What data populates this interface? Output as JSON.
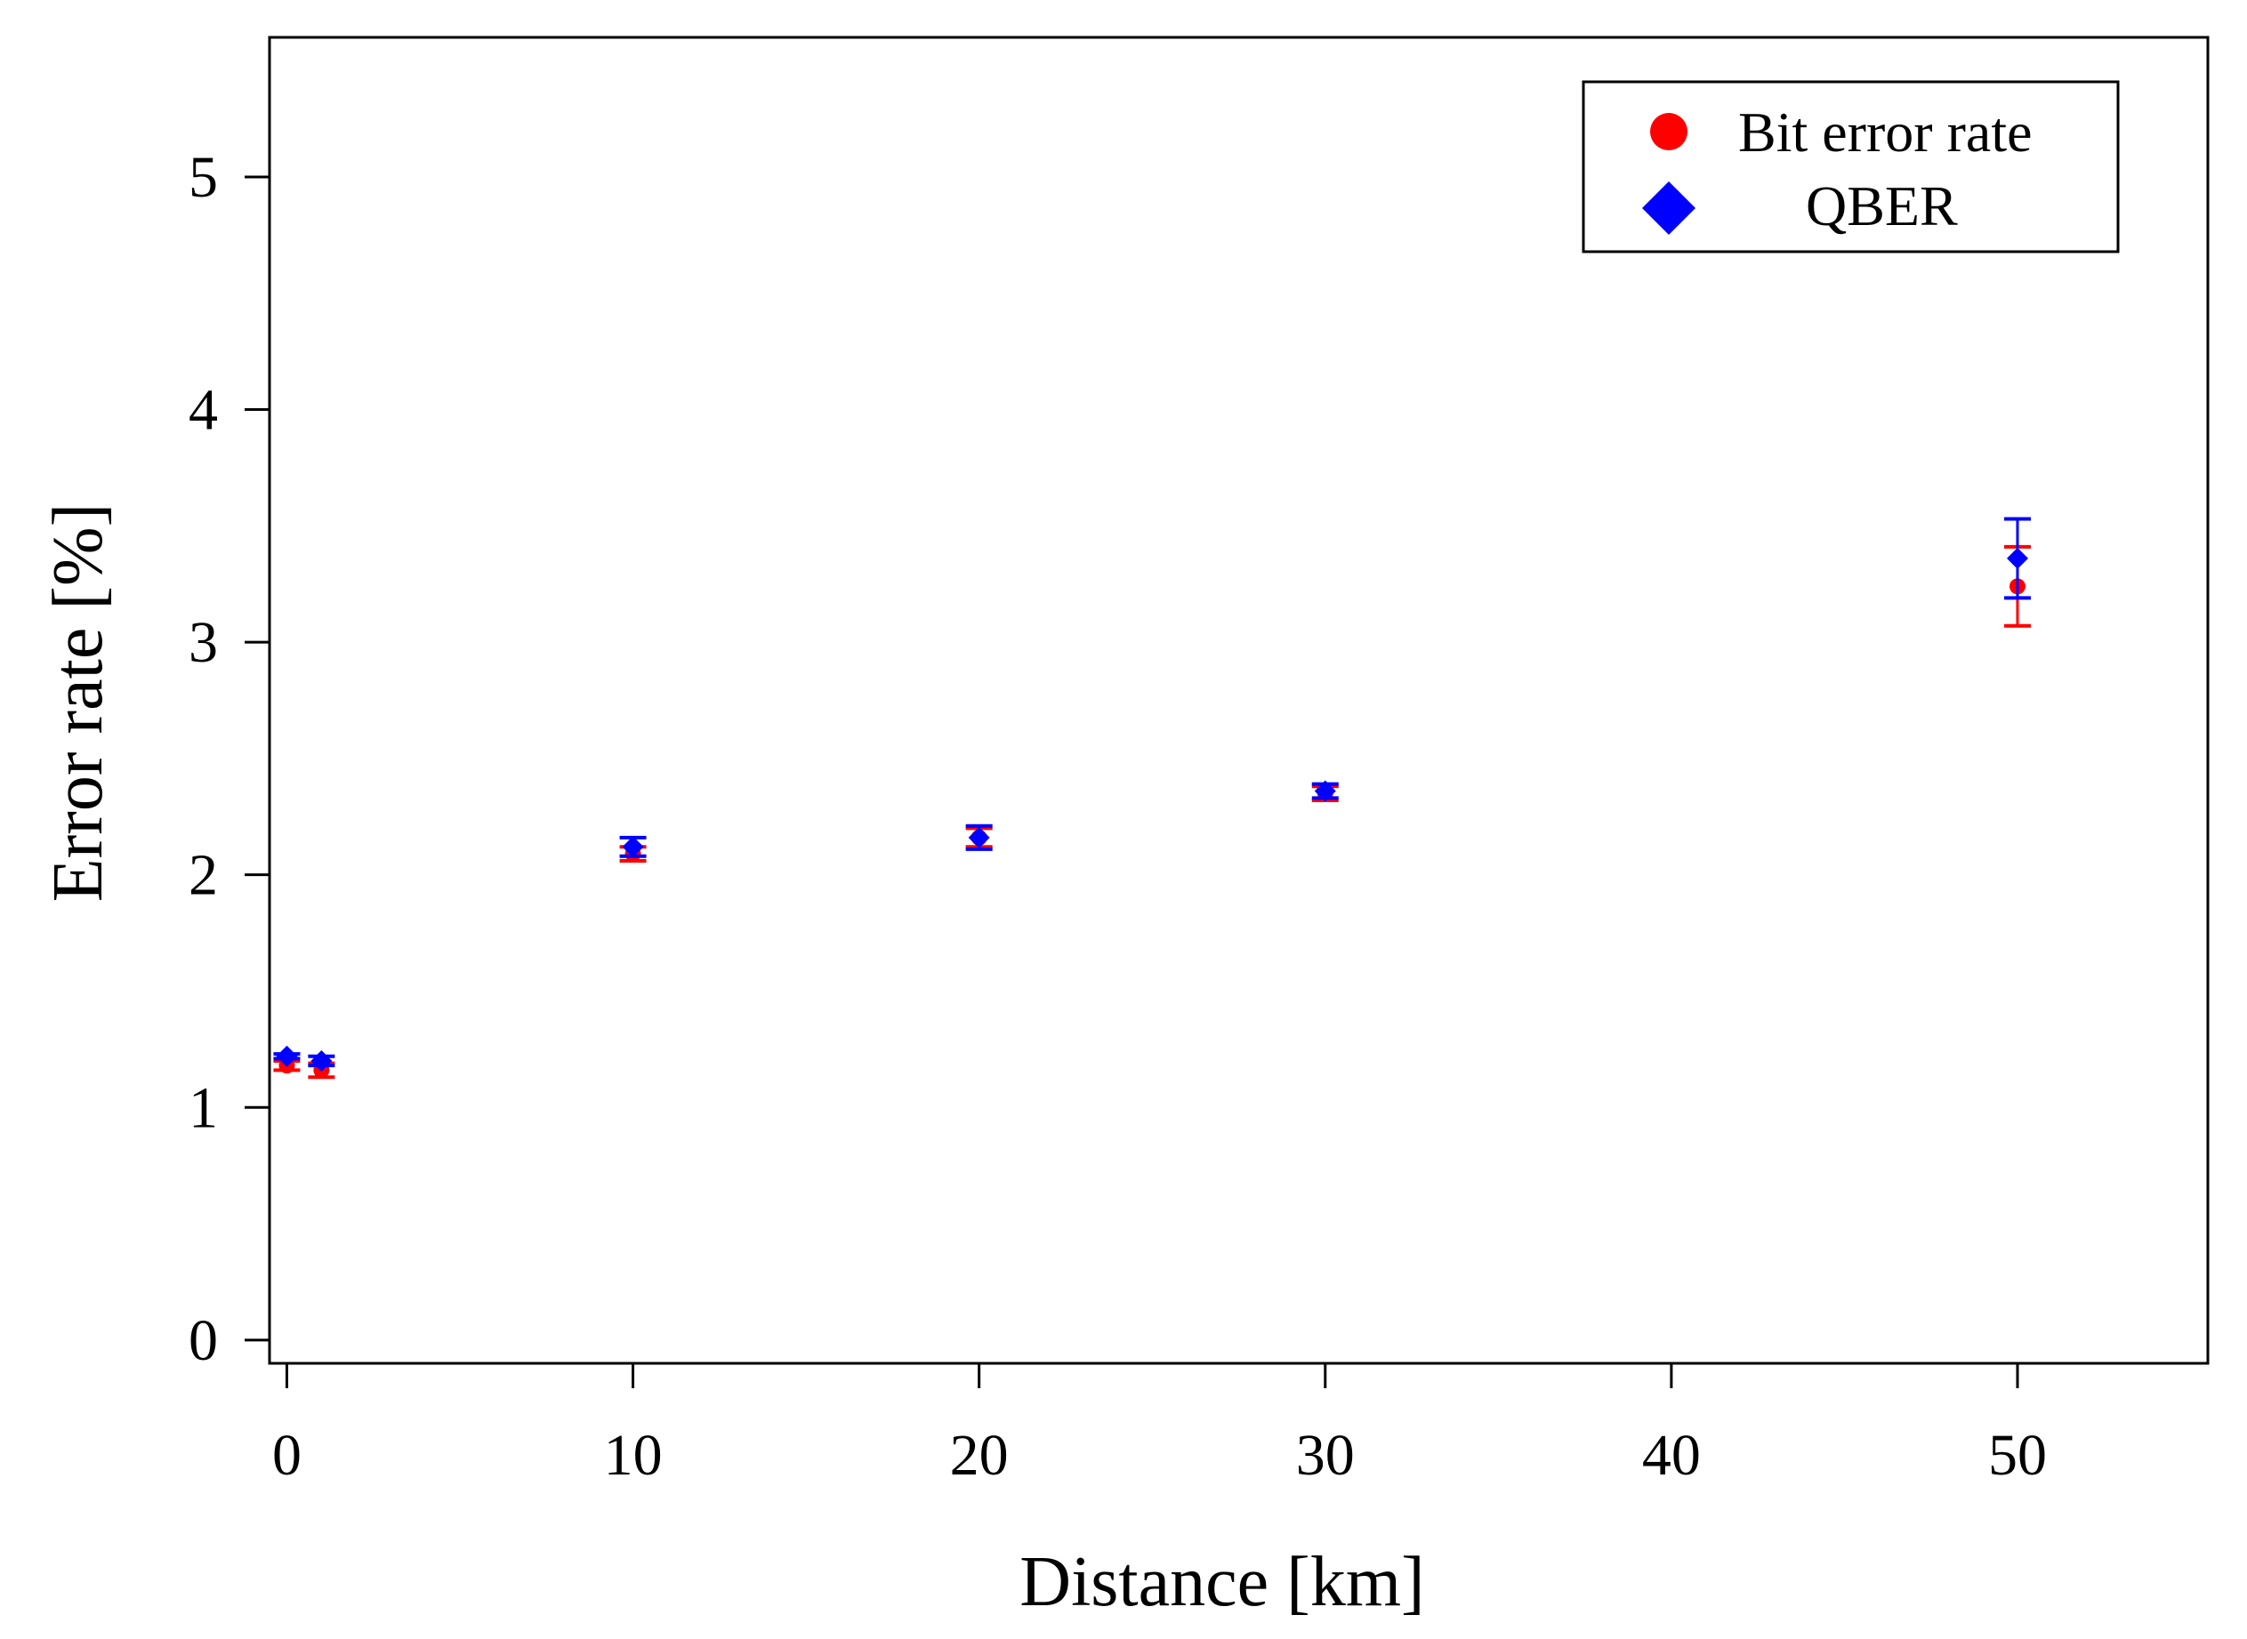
{
  "chart_data": {
    "type": "scatter",
    "title": "",
    "xlabel": "Distance [km]",
    "ylabel": "Error rate [%]",
    "xlim": [
      -0.5,
      55.5
    ],
    "ylim": [
      -0.1,
      5.6
    ],
    "xticks": [
      0,
      10,
      20,
      30,
      40,
      50
    ],
    "yticks": [
      0,
      1,
      2,
      3,
      4,
      5
    ],
    "grid": false,
    "legend_position": "top-right",
    "series": [
      {
        "name": "Bit error rate",
        "marker": "circle",
        "color": "#ff0000",
        "x": [
          0,
          1,
          10,
          20,
          30,
          50
        ],
        "y": [
          1.18,
          1.16,
          2.09,
          2.16,
          2.35,
          3.24
        ],
        "err": [
          0.02,
          0.03,
          0.03,
          0.04,
          0.03,
          0.17
        ]
      },
      {
        "name": "QBER",
        "marker": "diamond",
        "color": "#0000ff",
        "x": [
          0,
          1,
          10,
          20,
          30,
          50
        ],
        "y": [
          1.22,
          1.2,
          2.12,
          2.16,
          2.36,
          3.36
        ],
        "err": [
          0.01,
          0.02,
          0.04,
          0.05,
          0.03,
          0.17
        ]
      }
    ]
  }
}
